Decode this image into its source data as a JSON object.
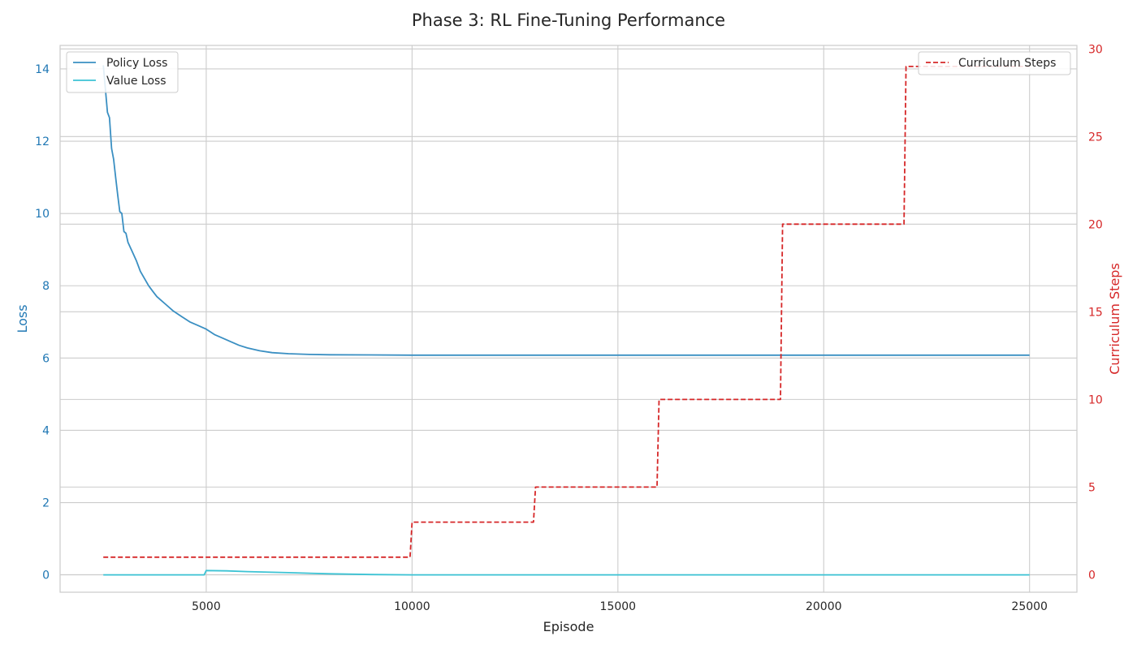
{
  "chart_data": {
    "type": "line",
    "title": "Phase 3: RL Fine-Tuning Performance",
    "xlabel": "Episode",
    "ylabel_left": "Loss",
    "ylabel_right": "Curriculum Steps",
    "xlim": [
      1450,
      26150
    ],
    "ylim_left": [
      -0.48,
      14.65
    ],
    "ylim_right": [
      -1.0,
      30.2
    ],
    "x_ticks": [
      5000,
      10000,
      15000,
      20000,
      25000
    ],
    "y_ticks_left": [
      0,
      2,
      4,
      6,
      8,
      10,
      12,
      14
    ],
    "y_ticks_right": [
      0,
      5,
      10,
      15,
      20,
      25,
      30
    ],
    "grid": true,
    "legend_left_placement": "top-left",
    "legend_right_placement": "top-right",
    "colors": {
      "policy": "#3a8fc2",
      "value": "#3cc3d4",
      "curriculum": "#d62728",
      "left_axis": "#1f77b4",
      "right_axis": "#d62728"
    },
    "series": [
      {
        "name": "Policy Loss",
        "axis": "left",
        "style": "solid",
        "x": [
          2500,
          2600,
          2650,
          2700,
          2750,
          2800,
          2850,
          2900,
          2950,
          3000,
          3050,
          3100,
          3200,
          3300,
          3400,
          3500,
          3600,
          3700,
          3800,
          3900,
          4000,
          4200,
          4400,
          4600,
          4800,
          5000,
          5200,
          5400,
          5600,
          5800,
          6000,
          6300,
          6600,
          7000,
          7500,
          8000,
          9000,
          10000,
          12000,
          15000,
          18000,
          20000,
          22000,
          25000
        ],
        "y": [
          14.1,
          12.8,
          12.65,
          11.8,
          11.5,
          11.0,
          10.5,
          10.05,
          10.0,
          9.5,
          9.45,
          9.2,
          8.95,
          8.7,
          8.4,
          8.2,
          8.0,
          7.85,
          7.7,
          7.6,
          7.5,
          7.3,
          7.15,
          7.0,
          6.9,
          6.8,
          6.65,
          6.55,
          6.45,
          6.35,
          6.28,
          6.2,
          6.15,
          6.12,
          6.1,
          6.09,
          6.085,
          6.08,
          6.08,
          6.08,
          6.08,
          6.08,
          6.08,
          6.08
        ]
      },
      {
        "name": "Value Loss",
        "axis": "left",
        "style": "solid",
        "x": [
          2500,
          3000,
          4000,
          4950,
          5000,
          5500,
          6000,
          7000,
          8000,
          9000,
          10000,
          15000,
          20000,
          25000
        ],
        "y": [
          0.0,
          0.0,
          0.0,
          0.0,
          0.12,
          0.11,
          0.09,
          0.06,
          0.03,
          0.01,
          0.0,
          0.0,
          0.0,
          0.0
        ]
      },
      {
        "name": "Curriculum Steps",
        "axis": "right",
        "style": "dashed",
        "x": [
          2500,
          9950,
          10000,
          12950,
          13000,
          15950,
          16000,
          18950,
          19000,
          21950,
          22000,
          25000
        ],
        "y": [
          1,
          1,
          3,
          3,
          5,
          5,
          10,
          10,
          20,
          20,
          29,
          29
        ]
      }
    ]
  }
}
